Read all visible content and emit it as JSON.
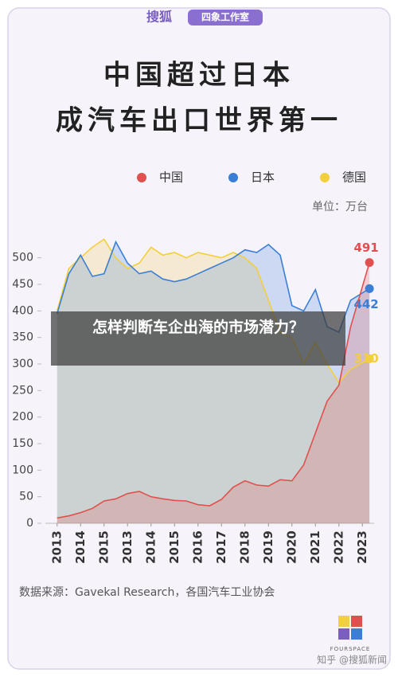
{
  "header": {
    "brand": "搜狐",
    "studio": "四象工作室"
  },
  "chart_data": {
    "type": "area-line",
    "title": [
      "中国超过日本",
      "成汽车出口世界第一"
    ],
    "unit": "单位：万台",
    "x": [
      0,
      0.5,
      1,
      1.5,
      2,
      2.5,
      3,
      3.5,
      4,
      4.5,
      5,
      5.5,
      6,
      6.5,
      7,
      7.5,
      8,
      8.5,
      9,
      9.5,
      10,
      10.5,
      11,
      11.5,
      12,
      12.5,
      13.3
    ],
    "xlim": [
      -0.5,
      13.5
    ],
    "xticks": [
      {
        "value": 0,
        "label": "2013"
      },
      {
        "value": 1,
        "label": "2014"
      },
      {
        "value": 2,
        "label": "2015"
      },
      {
        "value": 3,
        "label": "2013"
      },
      {
        "value": 4,
        "label": "2014"
      },
      {
        "value": 5,
        "label": "2015"
      },
      {
        "value": 6,
        "label": "2016"
      },
      {
        "value": 7,
        "label": "2017"
      },
      {
        "value": 8,
        "label": "2018"
      },
      {
        "value": 9,
        "label": "2019"
      },
      {
        "value": 10,
        "label": "2020"
      },
      {
        "value": 11,
        "label": "2021"
      },
      {
        "value": 12,
        "label": "2022"
      },
      {
        "value": 13,
        "label": "2023"
      }
    ],
    "ylim": [
      0,
      540
    ],
    "yticks": [
      0,
      50,
      100,
      150,
      200,
      250,
      300,
      350,
      400,
      450,
      500
    ],
    "series": [
      {
        "name": "德国",
        "color": "#f2cf3c",
        "values": [
          400,
          480,
          500,
          520,
          535,
          500,
          480,
          490,
          520,
          505,
          510,
          500,
          510,
          505,
          500,
          510,
          500,
          480,
          420,
          360,
          350,
          300,
          340,
          300,
          265,
          290,
          310
        ]
      },
      {
        "name": "日本",
        "color": "#3a7fd5",
        "values": [
          395,
          470,
          505,
          465,
          470,
          530,
          490,
          470,
          475,
          460,
          455,
          460,
          470,
          480,
          490,
          500,
          515,
          510,
          525,
          505,
          410,
          400,
          440,
          370,
          360,
          420,
          442
        ]
      },
      {
        "name": "中国",
        "color": "#e0504f",
        "values": [
          10,
          14,
          20,
          28,
          42,
          46,
          56,
          60,
          50,
          46,
          43,
          42,
          35,
          33,
          45,
          68,
          80,
          72,
          70,
          82,
          80,
          110,
          170,
          230,
          260,
          370,
          491
        ]
      }
    ],
    "legend_order": [
      2,
      1,
      0
    ]
  },
  "source": "数据来源：Gavekal Research，各国汽车工业协会",
  "footer": {
    "logo": "FOURSPACE",
    "watermark": "知乎 @搜狐新闻"
  },
  "overlay": {
    "title": "怎样判断车企出海的市场潜力？"
  }
}
